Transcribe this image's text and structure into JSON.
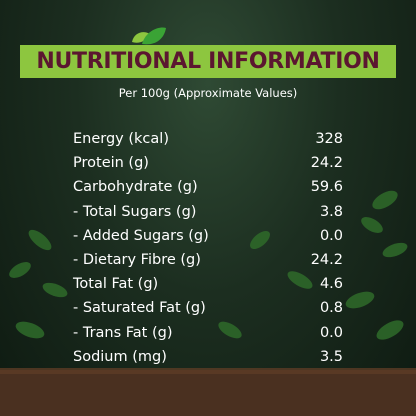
{
  "header": {
    "title": "NUTRITIONAL INFORMATION",
    "subtitle": "Per 100g (Approximate Values)"
  },
  "table": {
    "rows": [
      [
        "Energy (kcal)",
        "328"
      ],
      [
        "Protein (g)",
        "24.2"
      ],
      [
        "Carbohydrate (g)",
        "59.6"
      ],
      [
        "- Total Sugars (g)",
        "3.8"
      ],
      [
        "- Added Sugars (g)",
        "0.0"
      ],
      [
        "- Dietary Fibre (g)",
        "24.2"
      ],
      [
        "Total Fat (g)",
        "4.6"
      ],
      [
        "- Saturated Fat (g)",
        "0.8"
      ],
      [
        "- Trans Fat (g)",
        "0.0"
      ],
      [
        "Sodium (mg)",
        "3.5"
      ]
    ]
  }
}
